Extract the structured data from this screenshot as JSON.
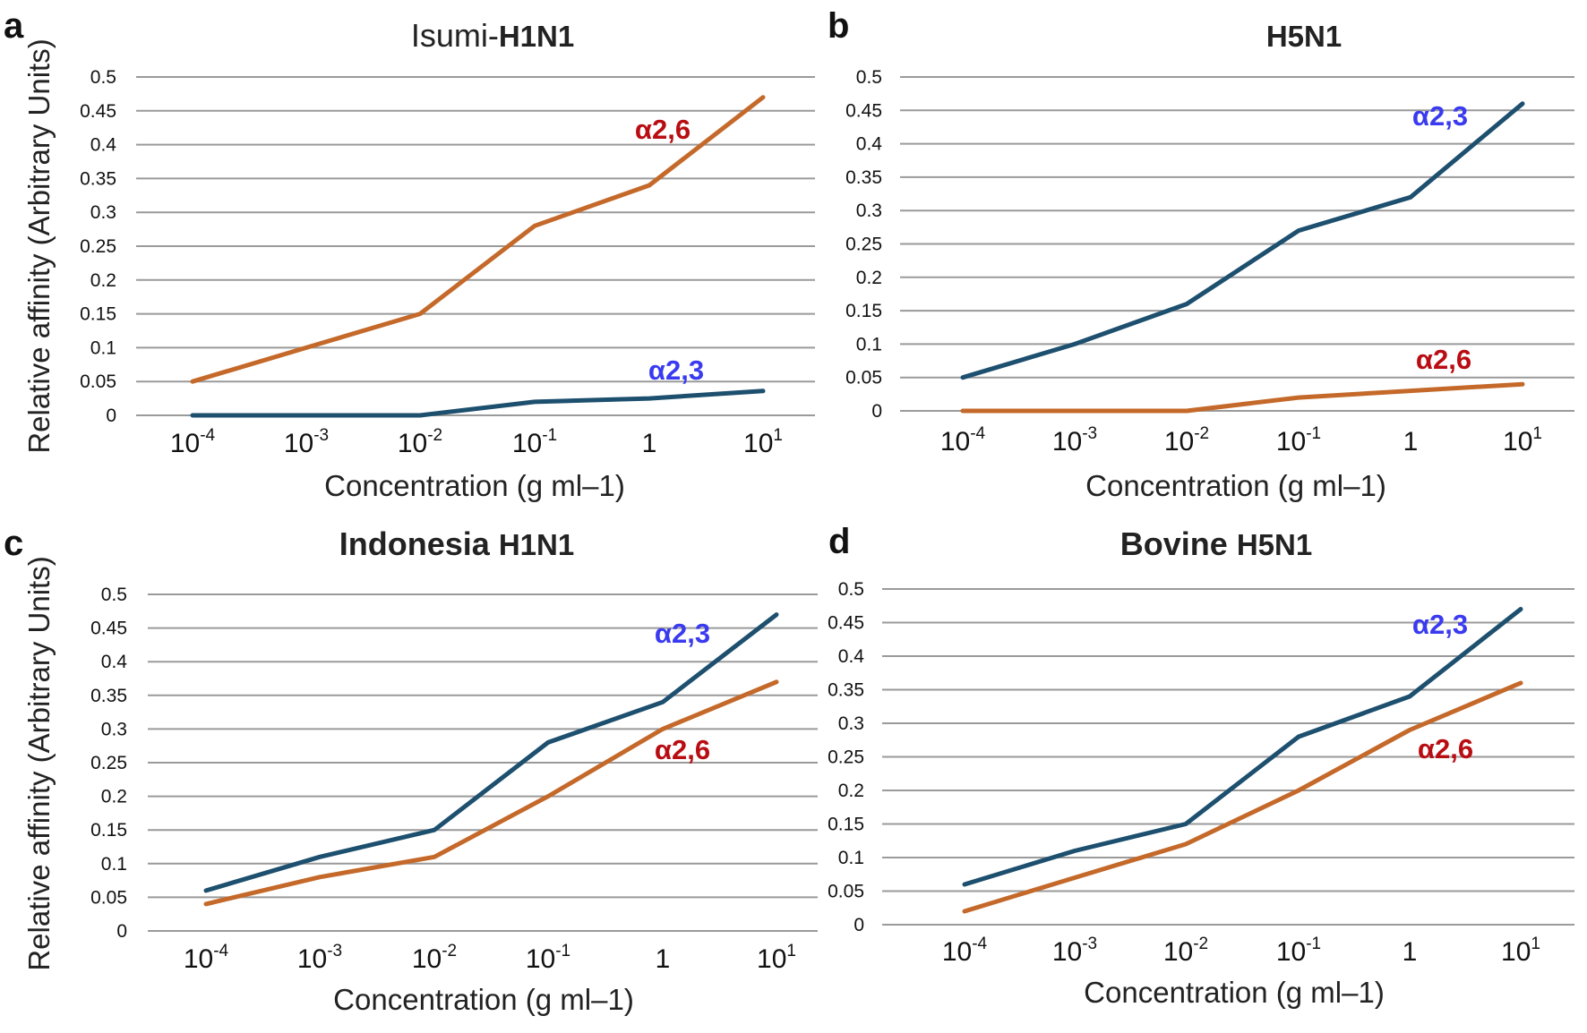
{
  "figure": {
    "x_categories": [
      "10-4",
      "10-3",
      "10-2",
      "10-1",
      "1",
      "101"
    ],
    "colors": {
      "alpha23_line": "#1d4f6e",
      "alpha26_line": "#c4692a",
      "alpha23_text": "#3a3af0",
      "alpha26_text": "#b80d12",
      "grid": "#9a9a9a"
    }
  },
  "chart_data": [
    {
      "type": "line",
      "panel": "a",
      "title_parts": [
        "Isumi-",
        "H1N1"
      ],
      "xlabel": "Concentration (g ml–1)",
      "ylabel": "Relative affinity (Arbitrary Units)",
      "categories": [
        "10^-4",
        "10^-3",
        "10^-2",
        "10^-1",
        "1",
        "10^1"
      ],
      "ylim": [
        0,
        0.5
      ],
      "yticks": [
        "0",
        "0.05",
        "0.1",
        "0.15",
        "0.2",
        "0.25",
        "0.3",
        "0.35",
        "0.4",
        "0.45",
        "0.5"
      ],
      "grid": true,
      "series": [
        {
          "name": "α2,6",
          "values": [
            0.05,
            0.1,
            0.15,
            0.28,
            0.34,
            0.47
          ]
        },
        {
          "name": "α2,3",
          "values": [
            0.0,
            0.0,
            0.0,
            0.02,
            0.025,
            0.036
          ]
        }
      ]
    },
    {
      "type": "line",
      "panel": "b",
      "title_parts": [
        "H5N1"
      ],
      "xlabel": "Concentration (g ml–1)",
      "ylabel": "",
      "categories": [
        "10^-4",
        "10^-3",
        "10^-2",
        "10^-1",
        "1",
        "10^1"
      ],
      "ylim": [
        0,
        0.5
      ],
      "yticks": [
        "0",
        "0.05",
        "0.1",
        "0.15",
        "0.2",
        "0.25",
        "0.3",
        "0.35",
        "0.4",
        "0.45",
        "0.5"
      ],
      "grid": true,
      "series": [
        {
          "name": "α2,3",
          "values": [
            0.05,
            0.1,
            0.16,
            0.27,
            0.32,
            0.46
          ]
        },
        {
          "name": "α2,6",
          "values": [
            0.0,
            0.0,
            0.0,
            0.02,
            0.03,
            0.04
          ]
        }
      ]
    },
    {
      "type": "line",
      "panel": "c",
      "title_parts": [
        "Indonesia ",
        "H1N1"
      ],
      "xlabel": "Concentration (g ml–1)",
      "ylabel": "Relative affinity (Arbitrary Units)",
      "categories": [
        "10^-4",
        "10^-3",
        "10^-2",
        "10^-1",
        "1",
        "10^1"
      ],
      "ylim": [
        0,
        0.5
      ],
      "yticks": [
        "0",
        "0.05",
        "0.1",
        "0.15",
        "0.2",
        "0.25",
        "0.3",
        "0.35",
        "0.4",
        "0.45",
        "0.5"
      ],
      "grid": true,
      "series": [
        {
          "name": "α2,3",
          "values": [
            0.06,
            0.11,
            0.15,
            0.28,
            0.34,
            0.47
          ]
        },
        {
          "name": "α2,6",
          "values": [
            0.04,
            0.08,
            0.11,
            0.2,
            0.3,
            0.37
          ]
        }
      ]
    },
    {
      "type": "line",
      "panel": "d",
      "title_parts": [
        "Bovine ",
        "H5N1"
      ],
      "xlabel": "Concentration (g ml–1)",
      "ylabel": "",
      "categories": [
        "10^-4",
        "10^-3",
        "10^-2",
        "10^-1",
        "1",
        "10^1"
      ],
      "ylim": [
        0,
        0.5
      ],
      "yticks": [
        "0",
        "0.05",
        "0.1",
        "0.15",
        "0.2",
        "0.25",
        "0.3",
        "0.35",
        "0.4",
        "0.45",
        "0.5"
      ],
      "grid": true,
      "series": [
        {
          "name": "α2,3",
          "values": [
            0.06,
            0.11,
            0.15,
            0.28,
            0.34,
            0.47
          ]
        },
        {
          "name": "α2,6",
          "values": [
            0.02,
            0.07,
            0.12,
            0.2,
            0.29,
            0.36
          ]
        }
      ]
    }
  ]
}
